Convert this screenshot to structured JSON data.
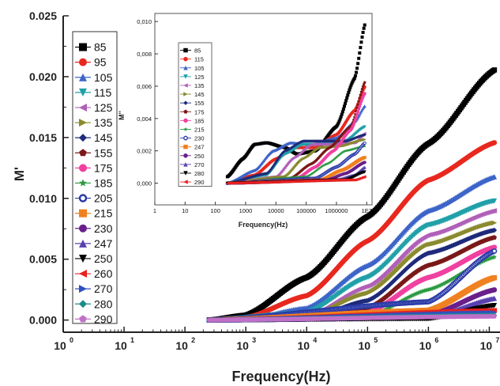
{
  "chart_data": [
    {
      "type": "scatter",
      "xlabel": "Frequency(Hz)",
      "ylabel": "M'",
      "xscale": "log",
      "xlim": [
        1,
        15000000
      ],
      "ylim": [
        -0.001,
        0.025
      ],
      "x_tick_labels": [
        "10",
        "10",
        "10",
        "10",
        "10",
        "10",
        "10",
        "10"
      ],
      "x_tick_exponents": [
        "0",
        "1",
        "2",
        "3",
        "4",
        "5",
        "6",
        "7"
      ],
      "y_tick_labels": [
        "0.000",
        "0.005",
        "0.010",
        "0.015",
        "0.020",
        "0.025"
      ],
      "y_ticks": [
        0,
        0.005,
        0.01,
        0.015,
        0.02,
        0.025
      ],
      "legend_position": "left",
      "series": [
        {
          "name": "85",
          "color": "#000000",
          "marker": "square",
          "values": [
            [
              250,
              0.0
            ],
            [
              1000,
              0.0004
            ],
            [
              10000,
              0.0035
            ],
            [
              100000,
              0.0085
            ],
            [
              1000000,
              0.0145
            ],
            [
              12600000,
              0.0206
            ]
          ]
        },
        {
          "name": "95",
          "color": "#e8281e",
          "marker": "circle",
          "values": [
            [
              250,
              0.0
            ],
            [
              1000,
              0.0002
            ],
            [
              10000,
              0.002
            ],
            [
              100000,
              0.0065
            ],
            [
              1000000,
              0.0115
            ],
            [
              12600000,
              0.0146
            ]
          ]
        },
        {
          "name": "105",
          "color": "#3d64c8",
          "marker": "triangle-up",
          "values": [
            [
              250,
              0.0
            ],
            [
              1000,
              0.0001
            ],
            [
              10000,
              0.001
            ],
            [
              100000,
              0.0045
            ],
            [
              1000000,
              0.009
            ],
            [
              12600000,
              0.0118
            ]
          ]
        },
        {
          "name": "115",
          "color": "#20a0a8",
          "marker": "triangle-down",
          "values": [
            [
              250,
              0.0
            ],
            [
              10000,
              0.0006
            ],
            [
              100000,
              0.0035
            ],
            [
              1000000,
              0.0078
            ],
            [
              12600000,
              0.0098
            ]
          ]
        },
        {
          "name": "125",
          "color": "#b060b8",
          "marker": "triangle-left",
          "values": [
            [
              250,
              0.0
            ],
            [
              10000,
              0.0003
            ],
            [
              100000,
              0.0028
            ],
            [
              1000000,
              0.007
            ],
            [
              12600000,
              0.009
            ]
          ]
        },
        {
          "name": "135",
          "color": "#8a8a2e",
          "marker": "triangle-right",
          "values": [
            [
              250,
              0.0
            ],
            [
              10000,
              0.0002
            ],
            [
              100000,
              0.0022
            ],
            [
              1000000,
              0.0062
            ],
            [
              12600000,
              0.008
            ]
          ]
        },
        {
          "name": "145",
          "color": "#1e2a7a",
          "marker": "diamond",
          "values": [
            [
              250,
              0.0
            ],
            [
              10000,
              0.0001
            ],
            [
              100000,
              0.0016
            ],
            [
              1000000,
              0.0055
            ],
            [
              12600000,
              0.0074
            ]
          ]
        },
        {
          "name": "155",
          "color": "#7a1818",
          "marker": "pentagon",
          "values": [
            [
              250,
              0.0
            ],
            [
              100000,
              0.001
            ],
            [
              1000000,
              0.0045
            ],
            [
              12600000,
              0.0068
            ]
          ]
        },
        {
          "name": "175",
          "color": "#f040a0",
          "marker": "circle",
          "values": [
            [
              250,
              0.0
            ],
            [
              100000,
              0.0006
            ],
            [
              1000000,
              0.0035
            ],
            [
              12600000,
              0.006
            ]
          ]
        },
        {
          "name": "185",
          "color": "#2a9a40",
          "marker": "star",
          "values": [
            [
              250,
              0.0
            ],
            [
              100000,
              0.0003
            ],
            [
              1000000,
              0.0025
            ],
            [
              12600000,
              0.0052
            ]
          ]
        },
        {
          "name": "205",
          "color": "#2a3aa8",
          "marker": "circle-half",
          "values": [
            [
              250,
              0.0
            ],
            [
              1000000,
              0.0015
            ],
            [
              12600000,
              0.0057
            ]
          ]
        },
        {
          "name": "215",
          "color": "#f08020",
          "marker": "square",
          "values": [
            [
              250,
              0.0
            ],
            [
              1000000,
              0.0008
            ],
            [
              12600000,
              0.0035
            ]
          ]
        },
        {
          "name": "230",
          "color": "#6a1f8a",
          "marker": "circle",
          "values": [
            [
              250,
              0.0
            ],
            [
              1000000,
              0.0004
            ],
            [
              12600000,
              0.0025
            ]
          ]
        },
        {
          "name": "247",
          "color": "#5a40b0",
          "marker": "triangle-up",
          "values": [
            [
              250,
              0.0
            ],
            [
              1000000,
              0.0002
            ],
            [
              12600000,
              0.0018
            ]
          ]
        },
        {
          "name": "250",
          "color": "#000000",
          "marker": "triangle-down",
          "values": [
            [
              250,
              0.0
            ],
            [
              1000000,
              0.0001
            ],
            [
              12600000,
              0.0012
            ]
          ]
        },
        {
          "name": "260",
          "color": "#e82020",
          "marker": "triangle-left",
          "values": [
            [
              250,
              0.0
            ],
            [
              12600000,
              0.0008
            ]
          ]
        },
        {
          "name": "270",
          "color": "#3050c0",
          "marker": "triangle-right",
          "values": [
            [
              250,
              0.0
            ],
            [
              12600000,
              0.0006
            ]
          ]
        },
        {
          "name": "280",
          "color": "#1e8a8a",
          "marker": "diamond",
          "values": [
            [
              250,
              0.0
            ],
            [
              12600000,
              0.0004
            ]
          ]
        },
        {
          "name": "290",
          "color": "#c070c8",
          "marker": "pentagon",
          "values": [
            [
              250,
              0.0
            ],
            [
              12600000,
              0.0003
            ]
          ]
        }
      ]
    },
    {
      "type": "scatter",
      "xlabel": "Frequency(Hz)",
      "ylabel": "M''",
      "xscale": "log",
      "xlim": [
        1,
        15000000
      ],
      "ylim": [
        -0.001,
        0.0105
      ],
      "x_tick_labels": [
        "1",
        "10",
        "100",
        "1000",
        "10000",
        "100000",
        "1000000",
        "1E7"
      ],
      "y_tick_labels": [
        "0,000",
        "0,002",
        "0,004",
        "0,006",
        "0,008",
        "0,010"
      ],
      "y_ticks": [
        0,
        0.002,
        0.004,
        0.006,
        0.008,
        0.01
      ],
      "legend_position": "left",
      "series": [
        {
          "name": "85",
          "color": "#000000",
          "marker": "square",
          "values": [
            [
              250,
              0.0004
            ],
            [
              800,
              0.0015
            ],
            [
              2000,
              0.0024
            ],
            [
              5000,
              0.0025
            ],
            [
              20000,
              0.0022
            ],
            [
              50000,
              0.0018
            ],
            [
              200000,
              0.002
            ],
            [
              1000000,
              0.0035
            ],
            [
              4000000,
              0.0065
            ],
            [
              9000000,
              0.0099
            ]
          ]
        },
        {
          "name": "115",
          "color": "#e8281e",
          "marker": "circle",
          "values": [
            [
              250,
              0.0
            ],
            [
              2000,
              0.0005
            ],
            [
              10000,
              0.0015
            ],
            [
              40000,
              0.0022
            ],
            [
              200000,
              0.0022
            ],
            [
              1000000,
              0.003
            ],
            [
              4000000,
              0.0045
            ],
            [
              9000000,
              0.006
            ]
          ]
        },
        {
          "name": "105",
          "color": "#3d64c8",
          "marker": "triangle-up",
          "values": [
            [
              250,
              0.0
            ],
            [
              2000,
              0.0008
            ],
            [
              8000,
              0.002
            ],
            [
              30000,
              0.0025
            ],
            [
              150000,
              0.0024
            ],
            [
              1000000,
              0.0028
            ],
            [
              4000000,
              0.0038
            ],
            [
              9000000,
              0.0048
            ]
          ]
        },
        {
          "name": "125",
          "color": "#20a0a8",
          "marker": "triangle-down",
          "values": [
            [
              250,
              0.0
            ],
            [
              5000,
              0.0005
            ],
            [
              20000,
              0.0018
            ],
            [
              80000,
              0.0024
            ],
            [
              400000,
              0.0024
            ],
            [
              2000000,
              0.0026
            ],
            [
              9000000,
              0.0035
            ]
          ]
        },
        {
          "name": "135",
          "color": "#b060b8",
          "marker": "triangle-left",
          "values": [
            [
              250,
              0.0
            ],
            [
              10000,
              0.0004
            ],
            [
              40000,
              0.0016
            ],
            [
              150000,
              0.0024
            ],
            [
              800000,
              0.0024
            ],
            [
              4000000,
              0.0025
            ],
            [
              9000000,
              0.0031
            ]
          ]
        },
        {
          "name": "145",
          "color": "#8a8a2e",
          "marker": "triangle-right",
          "values": [
            [
              250,
              0.0
            ],
            [
              20000,
              0.0004
            ],
            [
              80000,
              0.0015
            ],
            [
              300000,
              0.0022
            ],
            [
              1500000,
              0.0023
            ],
            [
              9000000,
              0.0027
            ]
          ]
        },
        {
          "name": "155",
          "color": "#1e2a7a",
          "marker": "diamond",
          "values": [
            [
              250,
              0.0
            ],
            [
              5000,
              0.0006
            ],
            [
              20000,
              0.002
            ],
            [
              80000,
              0.0026
            ],
            [
              400000,
              0.0026
            ],
            [
              2000000,
              0.0026
            ],
            [
              9000000,
              0.003
            ]
          ]
        },
        {
          "name": "175",
          "color": "#7a1818",
          "marker": "pentagon",
          "values": [
            [
              250,
              0.0
            ],
            [
              30000,
              0.0003
            ],
            [
              150000,
              0.0012
            ],
            [
              600000,
              0.0022
            ],
            [
              3000000,
              0.0035
            ],
            [
              9000000,
              0.0063
            ]
          ]
        },
        {
          "name": "185",
          "color": "#f040a0",
          "marker": "circle",
          "values": [
            [
              250,
              0.0
            ],
            [
              50000,
              0.0003
            ],
            [
              200000,
              0.001
            ],
            [
              800000,
              0.002
            ],
            [
              3000000,
              0.0033
            ],
            [
              9000000,
              0.0056
            ]
          ]
        },
        {
          "name": "215",
          "color": "#2a9a40",
          "marker": "star",
          "values": [
            [
              250,
              0.0
            ],
            [
              100000,
              0.0004
            ],
            [
              500000,
              0.0012
            ],
            [
              2000000,
              0.002
            ],
            [
              9000000,
              0.0023
            ]
          ]
        },
        {
          "name": "230",
          "color": "#2a3aa8",
          "marker": "circle-half",
          "values": [
            [
              250,
              0.0
            ],
            [
              200000,
              0.0003
            ],
            [
              1000000,
              0.001
            ],
            [
              4000000,
              0.0018
            ],
            [
              9000000,
              0.0025
            ]
          ]
        },
        {
          "name": "247",
          "color": "#f08020",
          "marker": "square",
          "values": [
            [
              250,
              0.0
            ],
            [
              300000,
              0.0002
            ],
            [
              1500000,
              0.0008
            ],
            [
              9000000,
              0.0016
            ]
          ]
        },
        {
          "name": "250",
          "color": "#6a1f8a",
          "marker": "circle",
          "values": [
            [
              250,
              0.0
            ],
            [
              500000,
              0.0002
            ],
            [
              2000000,
              0.0006
            ],
            [
              9000000,
              0.0013
            ]
          ]
        },
        {
          "name": "270",
          "color": "#5a40b0",
          "marker": "triangle-up",
          "values": [
            [
              250,
              0.0
            ],
            [
              1000000,
              0.0002
            ],
            [
              4000000,
              0.0005
            ],
            [
              9000000,
              0.001
            ]
          ]
        },
        {
          "name": "280",
          "color": "#000000",
          "marker": "triangle-down",
          "values": [
            [
              250,
              0.0
            ],
            [
              2000000,
              0.0002
            ],
            [
              9000000,
              0.0007
            ]
          ]
        },
        {
          "name": "290",
          "color": "#e82020",
          "marker": "triangle-left",
          "values": [
            [
              250,
              0.0
            ],
            [
              4000000,
              0.0002
            ],
            [
              9000000,
              0.0004
            ]
          ]
        }
      ]
    }
  ]
}
